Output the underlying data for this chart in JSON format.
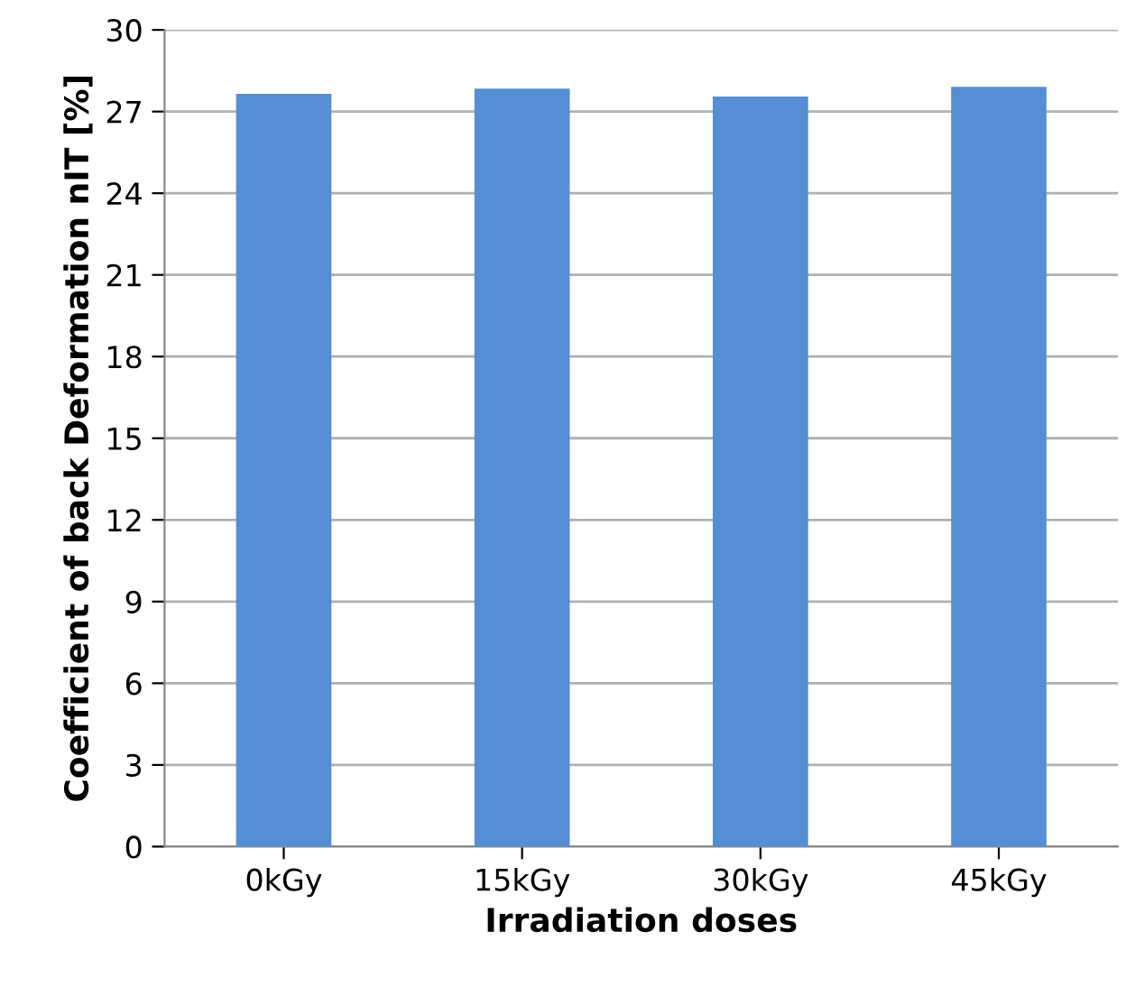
{
  "chart_data": {
    "type": "bar",
    "xlabel": "Irradiation doses",
    "ylabel": "Coefficient of back Deformation nIT [%]",
    "categories": [
      "0kGy",
      "15kGy",
      "30kGy",
      "45kGy"
    ],
    "values": [
      27.65,
      27.84,
      27.55,
      27.91
    ],
    "color": "#558ed5",
    "ylim": [
      0,
      30
    ],
    "yticks": [
      0,
      3,
      6,
      9,
      12,
      15,
      18,
      21,
      24,
      27,
      30
    ],
    "grid": "y",
    "legend": false
  }
}
